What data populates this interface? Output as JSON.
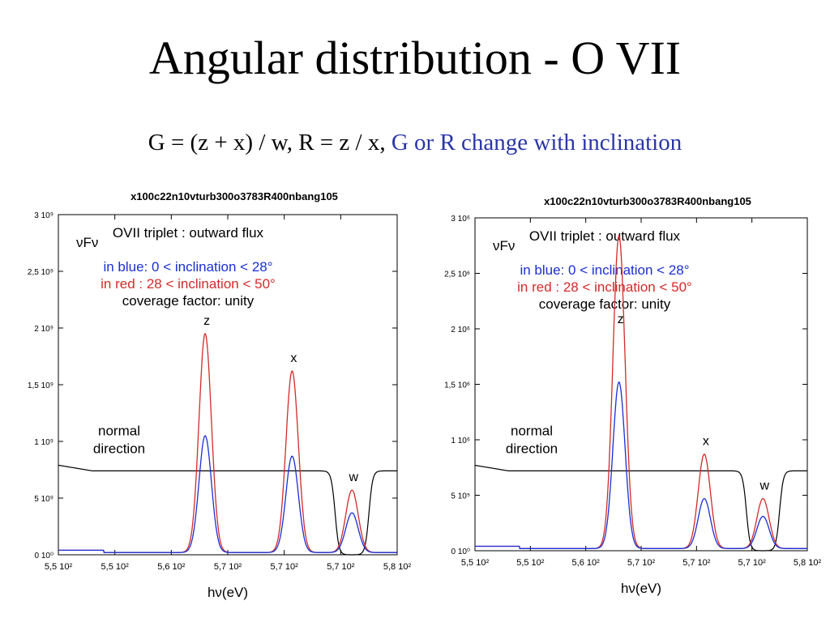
{
  "title": "Angular distribution - O VII",
  "subtitle": {
    "text": "G  = (z + x) / w, R = z / x,",
    "highlight": "G or R change with inclination"
  },
  "colors": {
    "blue": "#1a2fd6",
    "red": "#d42a2a",
    "black": "#000000",
    "highlight": "#2a35a8"
  },
  "chart_data": [
    {
      "type": "line",
      "title": "x100c22n10vturb300o3783R400nbang105",
      "ylabel": "νFν",
      "xlabel": "hν(eV)",
      "xticks": [
        "5,5 10²",
        "5,5 10²",
        "5,6 10²",
        "5,7 10²",
        "5,7 10²",
        "5,7 10²",
        "5,8 10²"
      ],
      "yticks": [
        "0 10⁰",
        "5 10⁹",
        "1 10⁹",
        "1,5 10⁹",
        "2 10⁹",
        "2,5 10⁹",
        "3 10⁹"
      ],
      "xlim": [
        548,
        578
      ],
      "ylim": [
        0,
        3
      ],
      "annotations": {
        "header": "OVII triplet : outward flux",
        "blue_label": "in blue: 0 < inclination < 28°",
        "red_label": "in red : 28 < inclination < 50°",
        "coverage": "coverage factor: unity",
        "normal_line1": "normal",
        "normal_line2": "direction",
        "z": "z",
        "x": "x",
        "w": "w"
      },
      "peaks": [
        {
          "label": "z",
          "x": 561,
          "blue": 1.03,
          "red": 1.93
        },
        {
          "label": "x",
          "x": 568.7,
          "blue": 0.85,
          "red": 1.6
        },
        {
          "label": "w",
          "x": 574,
          "blue": 0.35,
          "red": 0.55
        }
      ],
      "normal_level": 0.74,
      "normal_dip": [
        572.5,
        575.5
      ]
    },
    {
      "type": "line",
      "title": "x100c22n10vturb300o3783R400nbang105",
      "ylabel": "νFν",
      "xlabel": "hν(eV)",
      "xticks": [
        "5,5 10²",
        "5,5 10²",
        "5,6 10²",
        "5,7 10²",
        "5,7 10²",
        "5,7 10²",
        "5,8 10²"
      ],
      "yticks": [
        "0 10⁰",
        "5 10⁵",
        "1 10⁶",
        "1,5 10⁶",
        "2 10⁶",
        "2,5 10⁶",
        "3 10⁶"
      ],
      "xlim": [
        548,
        578
      ],
      "ylim": [
        0,
        3
      ],
      "annotations": {
        "header": "OVII triplet : outward flux",
        "blue_label": "in blue: 0 < inclination < 28°",
        "red_label": "in red : 28 < inclination < 50°",
        "coverage": "coverage factor: unity",
        "normal_line1": "normal",
        "normal_line2": "direction",
        "z": "z",
        "x": "x",
        "w": "w"
      },
      "peaks": [
        {
          "label": "z",
          "x": 561,
          "blue": 1.5,
          "red": 2.82
        },
        {
          "label": "x",
          "x": 568.7,
          "blue": 0.45,
          "red": 0.85
        },
        {
          "label": "w",
          "x": 574,
          "blue": 0.29,
          "red": 0.45
        }
      ],
      "normal_level": 0.72,
      "normal_dip": [
        572.5,
        575.5
      ]
    }
  ]
}
